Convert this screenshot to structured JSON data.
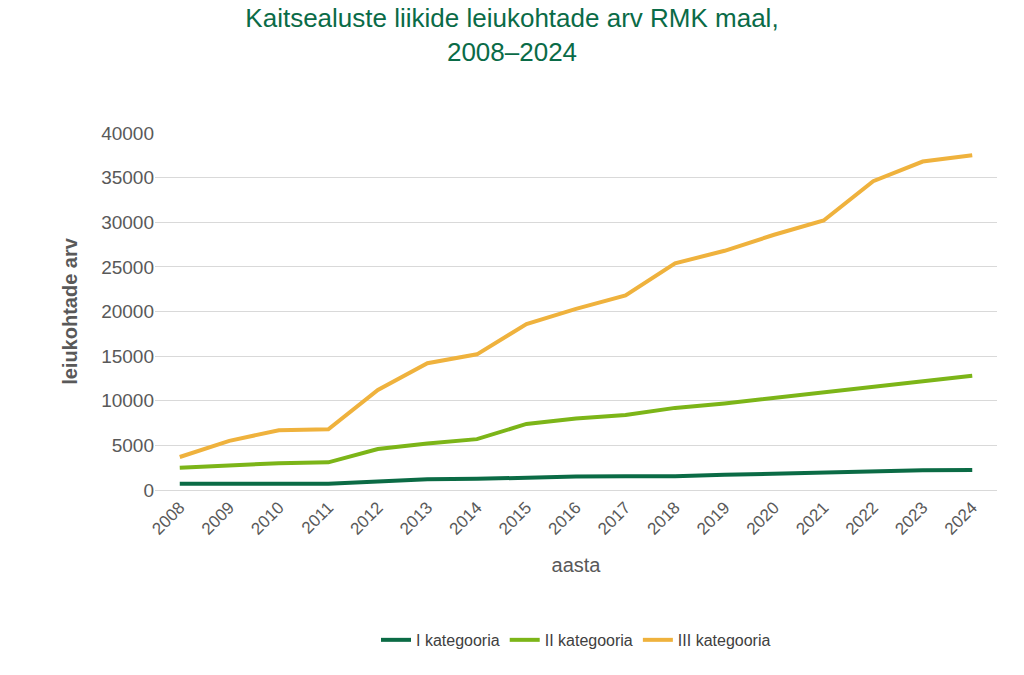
{
  "chart_data": {
    "type": "line",
    "title": "Kaitsealuste liikide leiukohtade arv RMK maal,\n2008–2024",
    "x_label": "aasta",
    "y_label": "leiukohtade arv",
    "categories": [
      "2008",
      "2009",
      "2010",
      "2011",
      "2012",
      "2013",
      "2014",
      "2015",
      "2016",
      "2017",
      "2018",
      "2019",
      "2020",
      "2021",
      "2022",
      "2023",
      "2024"
    ],
    "series": [
      {
        "name": "I kategooria",
        "color": "#0b6b45",
        "values": [
          700,
          650,
          700,
          700,
          1000,
          1200,
          1250,
          1400,
          1500,
          1550,
          1550,
          1700,
          1850,
          2000,
          2050,
          2200,
          2250
        ]
      },
      {
        "name": "II kategooria",
        "color": "#7cb518",
        "values": [
          2500,
          2800,
          3000,
          3100,
          4600,
          5200,
          5700,
          7400,
          8000,
          8400,
          9200,
          9700,
          10300,
          10900,
          11600,
          12100,
          12800
        ]
      },
      {
        "name": "III kategooria",
        "color": "#efb23d",
        "values": [
          3700,
          5500,
          6700,
          6800,
          11200,
          14200,
          15200,
          18600,
          20300,
          21800,
          25400,
          26800,
          28600,
          30200,
          34600,
          36800,
          37500
        ]
      }
    ],
    "ylim": [
      0,
      40000
    ],
    "yticks": [
      0,
      5000,
      10000,
      15000,
      20000,
      25000,
      30000,
      35000,
      40000
    ],
    "grid": true,
    "legend": "bottom"
  }
}
